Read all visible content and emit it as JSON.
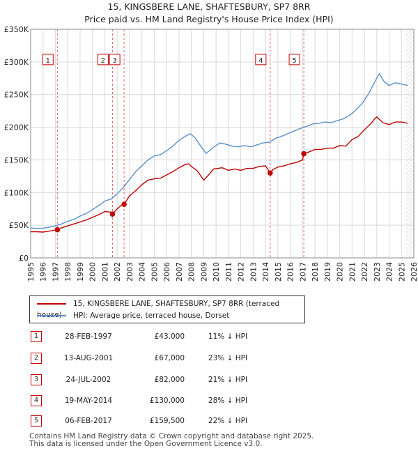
{
  "header": {
    "title": "15, KINGSBERE LANE, SHAFTESBURY, SP7 8RR",
    "subtitle": "Price paid vs. HM Land Registry's House Price Index (HPI)"
  },
  "colors": {
    "price_line": "#c00000",
    "hpi_line": "#5b8fc9",
    "grid": "#d9d9d9",
    "marker": "#c00000"
  },
  "chart_data": {
    "type": "line",
    "title": "15, KINGSBERE LANE, SHAFTESBURY, SP7 8RR",
    "subtitle": "Price paid vs. HM Land Registry's House Price Index (HPI)",
    "xlabel": "",
    "ylabel": "",
    "xlim": [
      1995,
      2026
    ],
    "ylim": [
      0,
      350000
    ],
    "grid": true,
    "y_ticks": [
      0,
      50000,
      100000,
      150000,
      200000,
      250000,
      300000,
      350000
    ],
    "y_tick_labels": [
      "£0",
      "£50K",
      "£100K",
      "£150K",
      "£200K",
      "£250K",
      "£300K",
      "£350K"
    ],
    "x_ticks": [
      1995,
      1996,
      1997,
      1998,
      1999,
      2000,
      2001,
      2002,
      2003,
      2004,
      2005,
      2006,
      2007,
      2008,
      2009,
      2010,
      2011,
      2012,
      2013,
      2014,
      2015,
      2016,
      2017,
      2018,
      2019,
      2020,
      2021,
      2022,
      2023,
      2024,
      2025,
      2026
    ],
    "x_tick_labels": [
      "1995",
      "1996",
      "1997",
      "1998",
      "1999",
      "2000",
      "2001",
      "2002",
      "2003",
      "2004",
      "2005",
      "2006",
      "2007",
      "2008",
      "2009",
      "2010",
      "2011",
      "2012",
      "2013",
      "2014",
      "2015",
      "2016",
      "2017",
      "2018",
      "2019",
      "2020",
      "2021",
      "2022",
      "2023",
      "2024",
      "2025",
      "2026"
    ],
    "forecast_start": 2025.33,
    "series": [
      {
        "name": "15, KINGSBERE LANE, SHAFTESBURY, SP7 8RR (terraced house)",
        "x": [
          1995.0,
          1995.5,
          1996.0,
          1996.5,
          1997.0,
          1997.16,
          1997.5,
          1998.0,
          1998.5,
          1999.0,
          1999.5,
          2000.0,
          2000.5,
          2001.0,
          2001.5,
          2001.62,
          2002.0,
          2002.3,
          2002.56,
          2003.0,
          2003.5,
          2004.0,
          2004.5,
          2005.0,
          2005.5,
          2006.0,
          2006.5,
          2007.0,
          2007.5,
          2007.8,
          2008.0,
          2008.5,
          2009.0,
          2009.3,
          2009.8,
          2010.5,
          2011.0,
          2011.5,
          2012.0,
          2012.5,
          2013.0,
          2013.5,
          2014.0,
          2014.38,
          2014.6,
          2015.0,
          2015.5,
          2016.0,
          2016.5,
          2017.0,
          2017.1,
          2017.5,
          2018.0,
          2018.5,
          2019.0,
          2019.5,
          2020.0,
          2020.5,
          2021.0,
          2021.5,
          2022.0,
          2022.5,
          2022.8,
          2023.0,
          2023.5,
          2024.0,
          2024.5,
          2025.0,
          2025.5
        ],
        "values": [
          40000,
          40000,
          39500,
          41000,
          42500,
          43000,
          46000,
          49000,
          52000,
          55000,
          58000,
          62000,
          66000,
          71000,
          70000,
          67000,
          75000,
          80000,
          82000,
          95000,
          103000,
          112000,
          119000,
          121000,
          122000,
          127000,
          132000,
          138000,
          143000,
          144000,
          140000,
          133000,
          119000,
          125000,
          136000,
          138000,
          134000,
          136000,
          134000,
          137000,
          137000,
          140000,
          141000,
          130000,
          135000,
          139000,
          141000,
          144000,
          146000,
          150000,
          159500,
          162000,
          166000,
          166000,
          168000,
          168000,
          172000,
          171000,
          181000,
          186000,
          196000,
          205000,
          212000,
          216000,
          207000,
          204000,
          208000,
          208000,
          206000
        ]
      },
      {
        "name": "HPI: Average price, terraced house, Dorset",
        "x": [
          1995.0,
          1995.5,
          1996.0,
          1996.5,
          1997.0,
          1997.5,
          1998.0,
          1998.5,
          1999.0,
          1999.5,
          2000.0,
          2000.5,
          2001.0,
          2001.5,
          2002.0,
          2002.5,
          2003.0,
          2003.5,
          2004.0,
          2004.5,
          2005.0,
          2005.5,
          2006.0,
          2006.5,
          2007.0,
          2007.5,
          2007.9,
          2008.3,
          2008.8,
          2009.2,
          2009.7,
          2010.3,
          2010.8,
          2011.3,
          2011.8,
          2012.3,
          2012.8,
          2013.3,
          2013.8,
          2014.3,
          2014.8,
          2015.3,
          2015.8,
          2016.3,
          2016.8,
          2017.3,
          2017.8,
          2018.3,
          2018.8,
          2019.3,
          2019.8,
          2020.3,
          2020.8,
          2021.3,
          2021.8,
          2022.3,
          2022.8,
          2023.2,
          2023.6,
          2024.0,
          2024.5,
          2025.0,
          2025.5
        ],
        "values": [
          46000,
          45000,
          45500,
          47000,
          49000,
          52000,
          56000,
          59000,
          64000,
          68000,
          74000,
          80000,
          87000,
          90000,
          98000,
          108000,
          120000,
          132000,
          141000,
          150000,
          156000,
          158000,
          164000,
          171000,
          180000,
          186000,
          190000,
          184000,
          170000,
          160000,
          168000,
          176000,
          174000,
          171000,
          170000,
          172000,
          170000,
          173000,
          176000,
          177000,
          183000,
          186000,
          190000,
          194000,
          198000,
          201000,
          205000,
          206000,
          208000,
          207000,
          210000,
          213000,
          218000,
          226000,
          236000,
          250000,
          268000,
          282000,
          270000,
          264000,
          268000,
          266000,
          264000
        ]
      }
    ],
    "events": [
      {
        "label": "1",
        "x": 1997.16,
        "y": 43000
      },
      {
        "label": "2",
        "x": 2001.62,
        "y": 67000
      },
      {
        "label": "3",
        "x": 2002.56,
        "y": 82000
      },
      {
        "label": "4",
        "x": 2014.38,
        "y": 130000
      },
      {
        "label": "5",
        "x": 2017.1,
        "y": 159500
      }
    ]
  },
  "legend": {
    "items": [
      {
        "label": "15, KINGSBERE LANE, SHAFTESBURY, SP7 8RR (terraced house)",
        "color": "#c00000"
      },
      {
        "label": "HPI: Average price, terraced house, Dorset",
        "color": "#5b8fc9"
      }
    ]
  },
  "transactions": [
    {
      "num": "1",
      "date": "28-FEB-1997",
      "price": "£43,000",
      "hpi": "11% ↓ HPI"
    },
    {
      "num": "2",
      "date": "13-AUG-2001",
      "price": "£67,000",
      "hpi": "23% ↓ HPI"
    },
    {
      "num": "3",
      "date": "24-JUL-2002",
      "price": "£82,000",
      "hpi": "21% ↓ HPI"
    },
    {
      "num": "4",
      "date": "19-MAY-2014",
      "price": "£130,000",
      "hpi": "28% ↓ HPI"
    },
    {
      "num": "5",
      "date": "06-FEB-2017",
      "price": "£159,500",
      "hpi": "22% ↓ HPI"
    }
  ],
  "footer": {
    "line1": "Contains HM Land Registry data © Crown copyright and database right 2025.",
    "line2": "This data is licensed under the Open Government Licence v3.0."
  }
}
